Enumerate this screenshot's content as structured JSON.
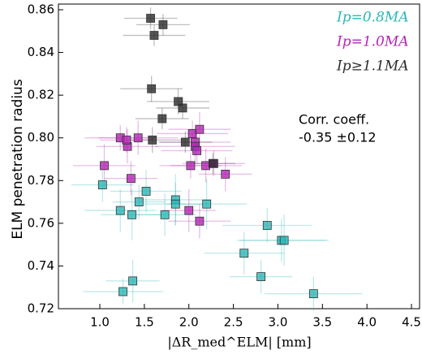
{
  "chart_data": {
    "type": "scatter",
    "xlabel": "|ΔR_med^ELM| [mm]",
    "ylabel": "ELM penetration radius",
    "annotation": [
      "Corr. coeff.",
      "-0.35 ±0.12"
    ],
    "xlim": [
      0.535,
      4.6
    ],
    "ylim": [
      0.72,
      0.86
    ],
    "xticks": [
      {
        "value": 1,
        "label": "1.0"
      },
      1.5,
      {
        "value": 2,
        "label": "2.0"
      },
      2.5,
      {
        "value": 3,
        "label": "3.0"
      },
      3.5,
      {
        "value": 4,
        "label": "4.0"
      },
      4.5
    ],
    "yticks": [
      0.72,
      0.74,
      0.76,
      0.78,
      {
        "value": 0.8,
        "label": "0.80"
      },
      0.82,
      0.84,
      0.86
    ],
    "series": [
      {
        "name": "Ip=0.8MA",
        "color": "#2ab7b7",
        "x": [
          1.03,
          1.23,
          1.36,
          1.44,
          1.52,
          1.73,
          1.85,
          1.85,
          2.2,
          2.62,
          2.88,
          3.04,
          3.07,
          2.81,
          3.4,
          1.37,
          1.26
        ],
        "values": [
          0.778,
          0.766,
          0.764,
          0.77,
          0.775,
          0.764,
          0.771,
          0.769,
          0.769,
          0.746,
          0.759,
          0.752,
          0.752,
          0.735,
          0.727,
          0.733,
          0.728
        ],
        "xerr": [
          0.35,
          0.4,
          0.35,
          0.3,
          0.4,
          0.35,
          0.4,
          0.35,
          0.45,
          0.45,
          0.5,
          0.5,
          0.5,
          0.35,
          0.55,
          0.3,
          0.45
        ],
        "yerr": [
          0.008,
          0.01,
          0.012,
          0.008,
          0.01,
          0.01,
          0.012,
          0.01,
          0.012,
          0.01,
          0.008,
          0.01,
          0.012,
          0.008,
          0.008,
          0.01,
          0.006
        ]
      },
      {
        "name": "Ip=1.0MA",
        "color": "#b424b4",
        "x": [
          1.23,
          1.31,
          1.3,
          1.43,
          1.05,
          1.35,
          2.04,
          2.12,
          2.07,
          2.07,
          2.02,
          2.19,
          2.28,
          2.41,
          2.0,
          2.12,
          2.09
        ],
        "values": [
          0.8,
          0.796,
          0.799,
          0.8,
          0.787,
          0.781,
          0.802,
          0.804,
          0.798,
          0.796,
          0.787,
          0.787,
          0.788,
          0.783,
          0.766,
          0.761,
          0.794
        ],
        "xerr": [
          0.4,
          0.35,
          0.3,
          0.45,
          0.35,
          0.3,
          0.4,
          0.35,
          0.4,
          0.45,
          0.35,
          0.4,
          0.35,
          0.3,
          0.3,
          0.35,
          0.4
        ],
        "yerr": [
          0.006,
          0.008,
          0.006,
          0.008,
          0.01,
          0.008,
          0.006,
          0.008,
          0.006,
          0.008,
          0.006,
          0.008,
          0.006,
          0.008,
          0.01,
          0.008,
          0.006
        ]
      },
      {
        "name": "Ip≥1.1MA",
        "color": "#2a2a2a",
        "x": [
          1.57,
          1.61,
          1.71,
          1.58,
          1.7,
          1.88,
          1.93,
          1.59,
          1.96,
          2.27
        ],
        "values": [
          0.856,
          0.848,
          0.853,
          0.823,
          0.809,
          0.817,
          0.814,
          0.799,
          0.798,
          0.788
        ],
        "xerr": [
          0.3,
          0.35,
          0.3,
          0.35,
          0.3,
          0.35,
          0.3,
          0.35,
          0.3,
          0.25
        ],
        "yerr": [
          0.005,
          0.005,
          0.005,
          0.006,
          0.005,
          0.006,
          0.005,
          0.006,
          0.005,
          0.005
        ]
      }
    ]
  }
}
